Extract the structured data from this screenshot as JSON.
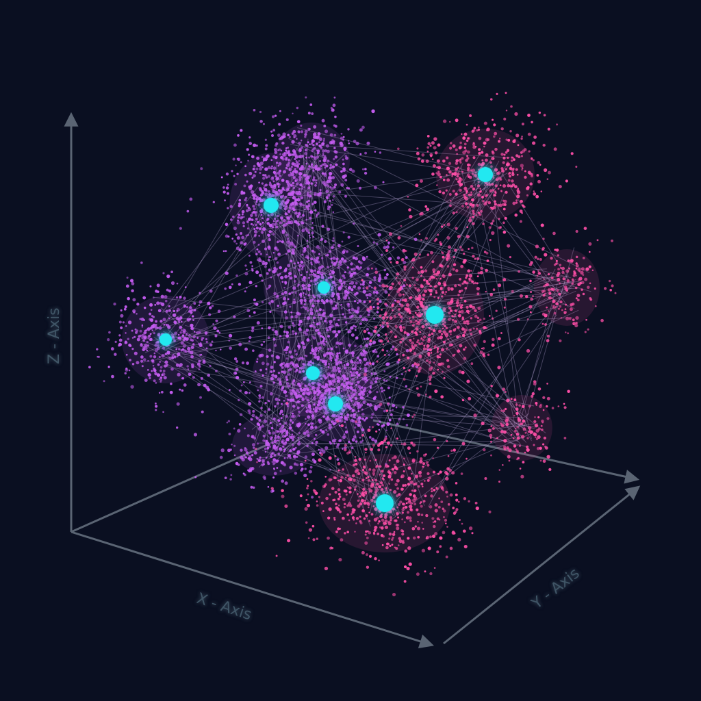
{
  "chart_data": {
    "type": "scatter",
    "projection": "3d",
    "xlabel": "X - Axis",
    "ylabel": "Y - Axis",
    "zlabel": "Z - Axis",
    "grid": false,
    "legend": "none",
    "series_colors": {
      "purple_clusters": "#c45cf0",
      "pink_clusters": "#ff4fa8",
      "centroids": "#22e8f0",
      "links": "#b8a6d8"
    }
  }
}
